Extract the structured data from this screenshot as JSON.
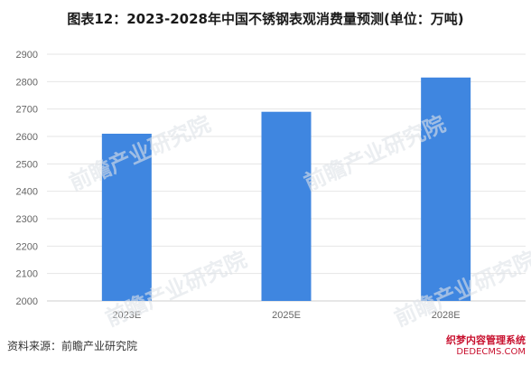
{
  "page_title": "图表12：2023-2028年中国不锈钢表观消费量预测(单位：万吨)",
  "source": "资料来源：前瞻产业研究院",
  "watermark": "前瞻产业研究院",
  "corner_mark": {
    "line1": "织梦内容管理系统",
    "line2": "DEDECMS.COM"
  },
  "colors": {
    "bar": "#3f86e0",
    "grid": "#e6e6e6",
    "axis": "#cfcfcf"
  },
  "chart_data": {
    "type": "bar",
    "title": "图表12：2023-2028年中国不锈钢表观消费量预测(单位：万吨)",
    "xlabel": "",
    "ylabel": "",
    "categories": [
      "2023E",
      "2025E",
      "2028E"
    ],
    "values": [
      2610,
      2690,
      2815
    ],
    "ylim": [
      2000,
      2900
    ],
    "yticks": [
      2000,
      2100,
      2200,
      2300,
      2400,
      2500,
      2600,
      2700,
      2800,
      2900
    ],
    "grid": true,
    "legend": "none"
  }
}
